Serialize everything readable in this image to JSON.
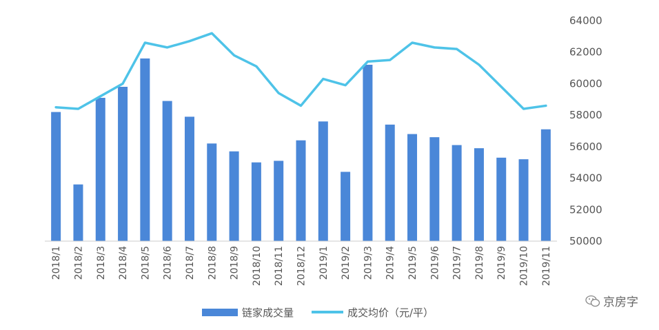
{
  "chart_data": {
    "type": "bar",
    "categories": [
      "2018/1",
      "2018/2",
      "2018/3",
      "2018/4",
      "2018/5",
      "2018/6",
      "2018/7",
      "2018/8",
      "2018/9",
      "2018/10",
      "2018/11",
      "2018/12",
      "2019/1",
      "2019/2",
      "2019/3",
      "2019/4",
      "2019/5",
      "2019/6",
      "2019/7",
      "2019/8",
      "2019/9",
      "2019/10",
      "2019/11"
    ],
    "series": [
      {
        "name": "链家成交量",
        "type": "bar",
        "color": "#4a87d8",
        "values": [
          58200,
          53600,
          59100,
          59800,
          61600,
          58900,
          57900,
          56200,
          55700,
          55000,
          55100,
          56400,
          57600,
          54400,
          61200,
          57400,
          56800,
          56600,
          56100,
          55900,
          55300,
          55200,
          57100
        ]
      },
      {
        "name": "成交均价（元/平）",
        "type": "line",
        "color": "#4ec3e8",
        "values": [
          58500,
          58400,
          59200,
          60000,
          62600,
          62300,
          62700,
          63200,
          61800,
          61100,
          59400,
          58600,
          60300,
          59900,
          61400,
          61500,
          62600,
          62300,
          62200,
          61200,
          59800,
          58400,
          58600
        ]
      }
    ],
    "yaxis": {
      "side": "right",
      "ylim": [
        50000,
        64000
      ],
      "ticks": [
        "50000",
        "52000",
        "54000",
        "56000",
        "58000",
        "60000",
        "62000",
        "64000"
      ]
    },
    "grid": false,
    "legend": "bottom"
  },
  "watermark": {
    "text": "京房字",
    "icon": "wechat-icon"
  }
}
